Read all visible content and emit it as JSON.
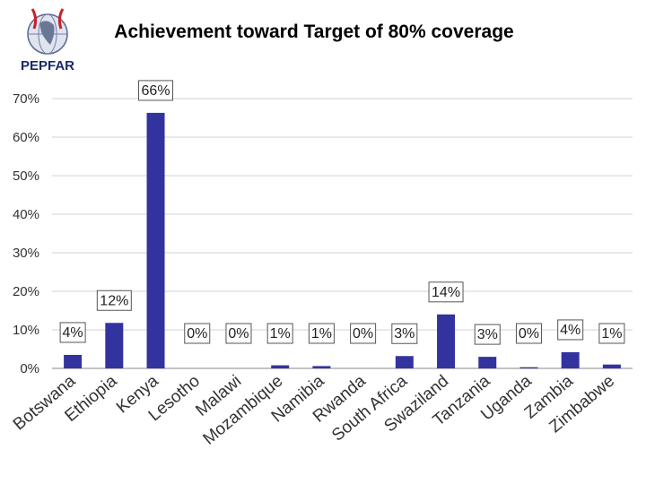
{
  "logo": {
    "text": "PEPFAR",
    "icon": "globe-ribbon-icon"
  },
  "chart_data": {
    "type": "bar",
    "title": "Achievement toward Target of 80% coverage",
    "xlabel": "",
    "ylabel": "",
    "ylim": [
      0,
      70
    ],
    "yticks": [
      0,
      10,
      20,
      30,
      40,
      50,
      60,
      70
    ],
    "ytick_labels": [
      "0%",
      "10%",
      "20%",
      "30%",
      "40%",
      "50%",
      "60%",
      "70%"
    ],
    "grid": true,
    "bar_color": "#3333a0",
    "categories": [
      "Botswana",
      "Ethiopia",
      "Kenya",
      "Lesotho",
      "Malawi",
      "Mozambique",
      "Namibia",
      "Rwanda",
      "South Africa",
      "Swaziland",
      "Tanzania",
      "Uganda",
      "Zambia",
      "Zimbabwe"
    ],
    "values": [
      3.5,
      11.8,
      66.3,
      0,
      0,
      0.8,
      0.6,
      0,
      3.2,
      14.0,
      3.0,
      0.3,
      4.2,
      1.0
    ],
    "data_labels": [
      "4%",
      "12%",
      "66%",
      "0%",
      "0%",
      "1%",
      "1%",
      "0%",
      "3%",
      "14%",
      "3%",
      "0%",
      "4%",
      "1%"
    ]
  }
}
